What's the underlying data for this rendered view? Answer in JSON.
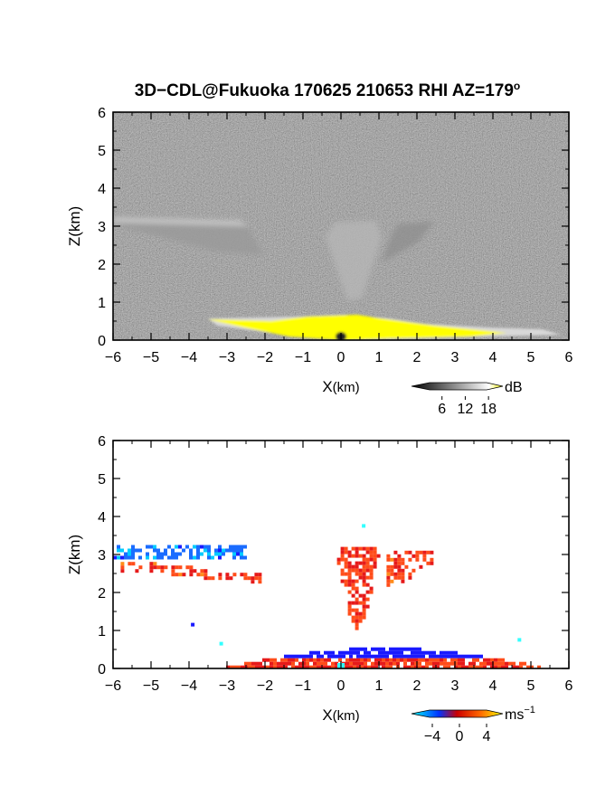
{
  "title": "3D−CDL@Fukuoka 170625 210653 RHI AZ=179",
  "title_sup": "o",
  "chart_data": [
    {
      "type": "heatmap",
      "name": "reflectivity",
      "xlabel": "X",
      "xlabel_unit": "(km)",
      "ylabel": "Z(km)",
      "xlim": [
        -6,
        6
      ],
      "ylim": [
        0,
        6
      ],
      "x_ticks": [
        "−6",
        "−5",
        "−4",
        "−3",
        "−2",
        "−1",
        "0",
        "1",
        "2",
        "3",
        "4",
        "5",
        "6"
      ],
      "y_ticks": [
        "0",
        "1",
        "2",
        "3",
        "4",
        "5",
        "6"
      ],
      "colorbar": {
        "unit": "dB",
        "ticks": [
          "6",
          "12",
          "18"
        ],
        "range": [
          0,
          21
        ],
        "colors": [
          "#000000",
          "#ffffff",
          "#ffff00"
        ]
      },
      "background": "noise",
      "features": [
        {
          "name": "left-inclined-band",
          "x": [
            -6,
            -2.0
          ],
          "z": [
            2.2,
            3.3
          ],
          "level": "moderate"
        },
        {
          "name": "center-plume",
          "x": [
            -0.6,
            0.9
          ],
          "z": [
            1.0,
            3.2
          ],
          "level": "moderate"
        },
        {
          "name": "right-inclined-band",
          "x": [
            0.9,
            2.4
          ],
          "z": [
            1.9,
            3.1
          ],
          "level": "moderate"
        },
        {
          "name": "surface-layer",
          "x": [
            -3.5,
            5.6
          ],
          "z": [
            0,
            0.65
          ],
          "level": "saturated"
        }
      ]
    },
    {
      "type": "heatmap",
      "name": "doppler-velocity",
      "xlabel": "X",
      "xlabel_unit": "(km)",
      "ylabel": "Z(km)",
      "xlim": [
        -6,
        6
      ],
      "ylim": [
        0,
        6
      ],
      "x_ticks": [
        "−6",
        "−5",
        "−4",
        "−3",
        "−2",
        "−1",
        "0",
        "1",
        "2",
        "3",
        "4",
        "5",
        "6"
      ],
      "y_ticks": [
        "0",
        "1",
        "2",
        "3",
        "4",
        "5",
        "6"
      ],
      "colorbar": {
        "unit": "ms",
        "unit_sup": "−1",
        "ticks": [
          "−4",
          "0",
          "4"
        ],
        "range": [
          -6,
          6
        ],
        "colors": [
          "#00ffff",
          "#0000ff",
          "#ff0000",
          "#ffff00"
        ]
      },
      "features": [
        {
          "name": "left-top-negative-band",
          "x": [
            -6,
            -2.5
          ],
          "z": [
            2.95,
            3.25
          ],
          "velocity": -3
        },
        {
          "name": "left-lower-positive-band",
          "x": [
            -5.8,
            -2.1
          ],
          "z": [
            2.3,
            2.9
          ],
          "velocity": 2.5
        },
        {
          "name": "center-positive-plume",
          "x": [
            -0.2,
            1.0
          ],
          "z": [
            1.1,
            3.2
          ],
          "velocity": 2
        },
        {
          "name": "right-positive-band",
          "x": [
            1.2,
            2.5
          ],
          "z": [
            2.2,
            3.1
          ],
          "velocity": 2.5
        },
        {
          "name": "surface-mixed-layer",
          "x": [
            -3.5,
            5.7
          ],
          "z": [
            0,
            0.65
          ],
          "velocity": 0
        }
      ]
    }
  ]
}
